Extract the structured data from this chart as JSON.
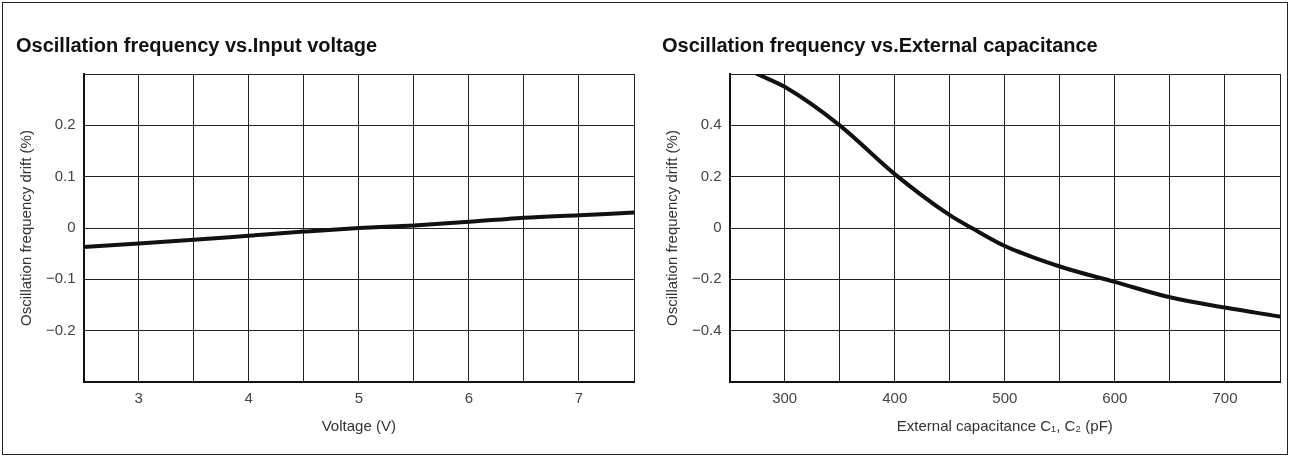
{
  "chart_data": [
    {
      "type": "line",
      "title": "Oscillation frequency vs.Input voltage",
      "xlabel": "Voltage (V)",
      "ylabel": "Oscillation frequency drift (%)",
      "x": [
        2.5,
        3,
        3.5,
        4,
        4.5,
        5,
        5.5,
        6,
        6.5,
        7,
        7.5
      ],
      "series": [
        {
          "color": "#111111",
          "values": [
            -0.037,
            -0.03,
            -0.023,
            -0.015,
            -0.007,
            0,
            0.005,
            0.012,
            0.02,
            0.025,
            0.03
          ]
        }
      ],
      "xlim": [
        2.5,
        7.5
      ],
      "xticks": [
        {
          "value": 2.5,
          "label": null
        },
        3,
        {
          "value": 3.5,
          "label": null
        },
        4,
        {
          "value": 4.5,
          "label": null
        },
        5,
        {
          "value": 5.5,
          "label": null
        },
        6,
        {
          "value": 6.5,
          "label": null
        },
        7,
        {
          "value": 7.5,
          "label": null
        }
      ],
      "ylim": [
        -0.3,
        0.3
      ],
      "yticks": [
        {
          "value": -0.3,
          "label": null
        },
        {
          "value": -0.2,
          "label": "−0.2"
        },
        {
          "value": -0.1,
          "label": "−0.1"
        },
        0,
        0.1,
        0.2,
        {
          "value": 0.3,
          "label": null
        }
      ],
      "grid": true,
      "legend": false,
      "marker": "none",
      "line_style": "solid"
    },
    {
      "type": "line",
      "title": "Oscillation frequency vs.External capacitance",
      "xlabel": "External capacitance C₁, C₂ (pF)",
      "ylabel": "Oscillation frequency drift (%)",
      "x": [
        275,
        300,
        350,
        400,
        450,
        470,
        500,
        550,
        600,
        650,
        700,
        750
      ],
      "series": [
        {
          "color": "#111111",
          "values": [
            0.6,
            0.55,
            0.4,
            0.21,
            0.05,
            0,
            -0.07,
            -0.15,
            -0.21,
            -0.27,
            -0.31,
            -0.345
          ]
        }
      ],
      "xlim": [
        250,
        750
      ],
      "xticks": [
        {
          "value": 250,
          "label": null
        },
        300,
        {
          "value": 350,
          "label": null
        },
        400,
        {
          "value": 450,
          "label": null
        },
        500,
        {
          "value": 550,
          "label": null
        },
        600,
        {
          "value": 650,
          "label": null
        },
        700,
        {
          "value": 750,
          "label": null
        }
      ],
      "ylim": [
        -0.6,
        0.6
      ],
      "yticks": [
        {
          "value": -0.6,
          "label": null
        },
        {
          "value": -0.4,
          "label": "−0.4"
        },
        {
          "value": -0.2,
          "label": "−0.2"
        },
        0,
        0.2,
        0.4,
        {
          "value": 0.6,
          "label": null
        }
      ],
      "grid": true,
      "legend": false,
      "marker": "none",
      "line_style": "solid"
    }
  ]
}
